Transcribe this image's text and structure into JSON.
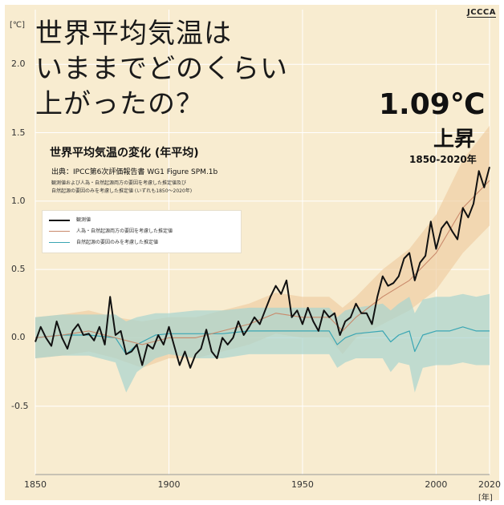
{
  "logo": "JCCCA",
  "headline": "世界平均気温は\nいままでどのくらい\n上がったの？",
  "highlight": {
    "value": "1.09℃",
    "unit_label": "上昇",
    "period": "1850-2020年"
  },
  "chart_data": {
    "type": "line",
    "title": "世界平均気温の変化 (年平均)",
    "source": "出典：IPCC第6次評価報告書 WG1 Figure SPM.1b",
    "note": "観測値および人為・自然起源両方の要因を考慮した推定値及び\n自然起源の要因のみを考慮した推定値 (いずれも1850〜2020年)",
    "xlabel": "",
    "ylabel": "",
    "y_unit": "[℃]",
    "x_unit": "[年]",
    "xlim": [
      1850,
      2020
    ],
    "ylim": [
      -1.0,
      2.4
    ],
    "y_ticks": [
      "2.0",
      "1.5",
      "1.0",
      "0.5",
      "0.0",
      "-0.5"
    ],
    "y_tick_values": [
      2.0,
      1.5,
      1.0,
      0.5,
      0.0,
      -0.5
    ],
    "x_ticks": [
      "1850",
      "1900",
      "1950",
      "2000",
      "2020"
    ],
    "x_tick_values": [
      1850,
      1900,
      1950,
      2000,
      2020
    ],
    "grid": true,
    "legend": "upper-left",
    "colors": {
      "background": "#f8ecd0",
      "observed": "#111111",
      "human_natural": "#c9896a",
      "human_natural_band": "#efcfa4",
      "natural_only": "#3aa6b4",
      "natural_only_band": "#a8d4cf",
      "grid": "#ffffff"
    },
    "series": [
      {
        "name": "観測値",
        "x": [
          1850,
          1852,
          1854,
          1856,
          1858,
          1860,
          1862,
          1864,
          1866,
          1868,
          1870,
          1872,
          1874,
          1876,
          1878,
          1880,
          1882,
          1884,
          1886,
          1888,
          1890,
          1892,
          1894,
          1896,
          1898,
          1900,
          1902,
          1904,
          1906,
          1908,
          1910,
          1912,
          1914,
          1916,
          1918,
          1920,
          1922,
          1924,
          1926,
          1928,
          1930,
          1932,
          1934,
          1936,
          1938,
          1940,
          1942,
          1944,
          1946,
          1948,
          1950,
          1952,
          1954,
          1956,
          1958,
          1960,
          1962,
          1964,
          1966,
          1968,
          1970,
          1972,
          1974,
          1976,
          1978,
          1980,
          1982,
          1984,
          1986,
          1988,
          1990,
          1992,
          1994,
          1996,
          1998,
          2000,
          2002,
          2004,
          2006,
          2008,
          2010,
          2012,
          2014,
          2016,
          2018,
          2020
        ],
        "values": [
          -0.03,
          0.08,
          0.0,
          -0.06,
          0.12,
          0.0,
          -0.08,
          0.05,
          0.1,
          0.02,
          0.03,
          -0.02,
          0.08,
          -0.05,
          0.3,
          0.02,
          0.05,
          -0.12,
          -0.1,
          -0.05,
          -0.2,
          -0.05,
          -0.08,
          0.02,
          -0.05,
          0.08,
          -0.06,
          -0.2,
          -0.1,
          -0.22,
          -0.12,
          -0.08,
          0.06,
          -0.1,
          -0.15,
          0.0,
          -0.05,
          0.0,
          0.12,
          0.02,
          0.08,
          0.15,
          0.1,
          0.2,
          0.3,
          0.38,
          0.32,
          0.42,
          0.15,
          0.2,
          0.1,
          0.22,
          0.12,
          0.05,
          0.2,
          0.15,
          0.18,
          0.02,
          0.12,
          0.15,
          0.25,
          0.18,
          0.18,
          0.1,
          0.3,
          0.45,
          0.38,
          0.4,
          0.45,
          0.58,
          0.62,
          0.42,
          0.55,
          0.6,
          0.85,
          0.65,
          0.8,
          0.85,
          0.78,
          0.72,
          0.95,
          0.88,
          0.98,
          1.22,
          1.1,
          1.25
        ]
      },
      {
        "name": "人為・自然起源両方の要因を考慮した推定値",
        "x": [
          1850,
          1860,
          1870,
          1880,
          1890,
          1900,
          1910,
          1920,
          1930,
          1940,
          1950,
          1960,
          1965,
          1970,
          1980,
          1990,
          2000,
          2010,
          2020
        ],
        "values": [
          0.0,
          0.02,
          0.05,
          0.0,
          -0.05,
          0.0,
          0.0,
          0.05,
          0.1,
          0.18,
          0.15,
          0.15,
          0.05,
          0.15,
          0.3,
          0.42,
          0.62,
          0.95,
          1.15
        ],
        "band_upper": [
          0.15,
          0.17,
          0.2,
          0.15,
          0.12,
          0.15,
          0.15,
          0.2,
          0.25,
          0.33,
          0.3,
          0.3,
          0.22,
          0.3,
          0.5,
          0.65,
          0.9,
          1.3,
          1.55
        ],
        "band_lower": [
          -0.15,
          -0.13,
          -0.1,
          -0.15,
          -0.22,
          -0.15,
          -0.15,
          -0.1,
          -0.05,
          0.03,
          0.0,
          0.0,
          -0.12,
          0.0,
          0.1,
          0.2,
          0.35,
          0.62,
          0.82
        ]
      },
      {
        "name": "自然起源の要因のみを考慮した推定値",
        "x": [
          1850,
          1860,
          1870,
          1880,
          1884,
          1888,
          1895,
          1900,
          1910,
          1920,
          1930,
          1940,
          1950,
          1960,
          1963,
          1966,
          1970,
          1980,
          1983,
          1986,
          1990,
          1992,
          1995,
          2000,
          2005,
          2010,
          2015,
          2020
        ],
        "values": [
          0.0,
          0.02,
          0.02,
          0.0,
          -0.12,
          -0.05,
          0.02,
          0.03,
          0.03,
          0.03,
          0.05,
          0.05,
          0.05,
          0.05,
          -0.05,
          0.0,
          0.03,
          0.05,
          -0.03,
          0.02,
          0.05,
          -0.1,
          0.02,
          0.05,
          0.05,
          0.08,
          0.05,
          0.05
        ],
        "band_upper": [
          0.15,
          0.17,
          0.17,
          0.17,
          0.12,
          0.15,
          0.18,
          0.18,
          0.2,
          0.2,
          0.22,
          0.22,
          0.22,
          0.22,
          0.15,
          0.2,
          0.22,
          0.25,
          0.2,
          0.25,
          0.3,
          0.18,
          0.28,
          0.3,
          0.3,
          0.32,
          0.3,
          0.32
        ],
        "band_lower": [
          -0.15,
          -0.13,
          -0.13,
          -0.18,
          -0.4,
          -0.25,
          -0.15,
          -0.12,
          -0.15,
          -0.15,
          -0.12,
          -0.12,
          -0.12,
          -0.12,
          -0.22,
          -0.18,
          -0.15,
          -0.15,
          -0.25,
          -0.18,
          -0.2,
          -0.4,
          -0.22,
          -0.2,
          -0.2,
          -0.18,
          -0.2,
          -0.2
        ]
      }
    ]
  }
}
